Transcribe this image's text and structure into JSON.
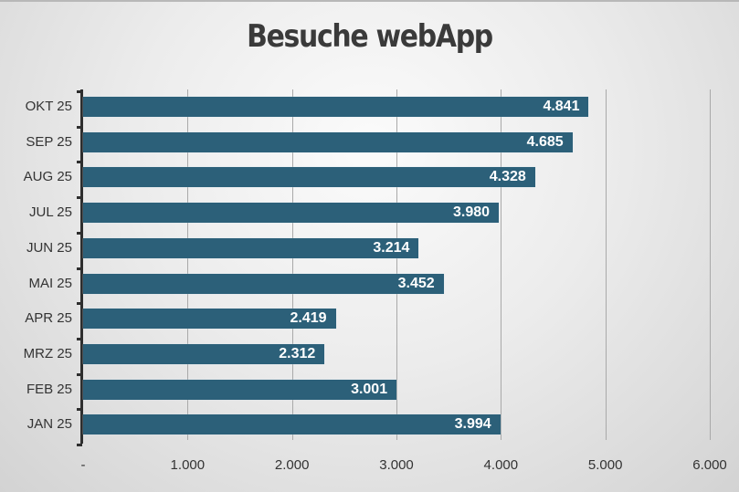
{
  "chart_data": {
    "type": "bar",
    "orientation": "horizontal",
    "title": "Besuche webApp",
    "xlabel": "",
    "ylabel": "",
    "categories": [
      "OKT 25",
      "SEP 25",
      "AUG 25",
      "JUL 25",
      "JUN 25",
      "MAI 25",
      "APR 25",
      "MRZ 25",
      "FEB 25",
      "JAN 25"
    ],
    "values": [
      4841,
      4685,
      4328,
      3980,
      3214,
      3452,
      2419,
      2312,
      3001,
      3994
    ],
    "value_labels": [
      "4.841",
      "4.685",
      "4.328",
      "3.980",
      "3.214",
      "3.452",
      "2.419",
      "2.312",
      "3.001",
      "3.994"
    ],
    "xlim": [
      0,
      6000
    ],
    "x_ticks": [
      "-",
      "1.000",
      "2.000",
      "3.000",
      "4.000",
      "5.000",
      "6.000"
    ],
    "grid": true,
    "legend": "none",
    "bar_color": "#2c6079"
  }
}
